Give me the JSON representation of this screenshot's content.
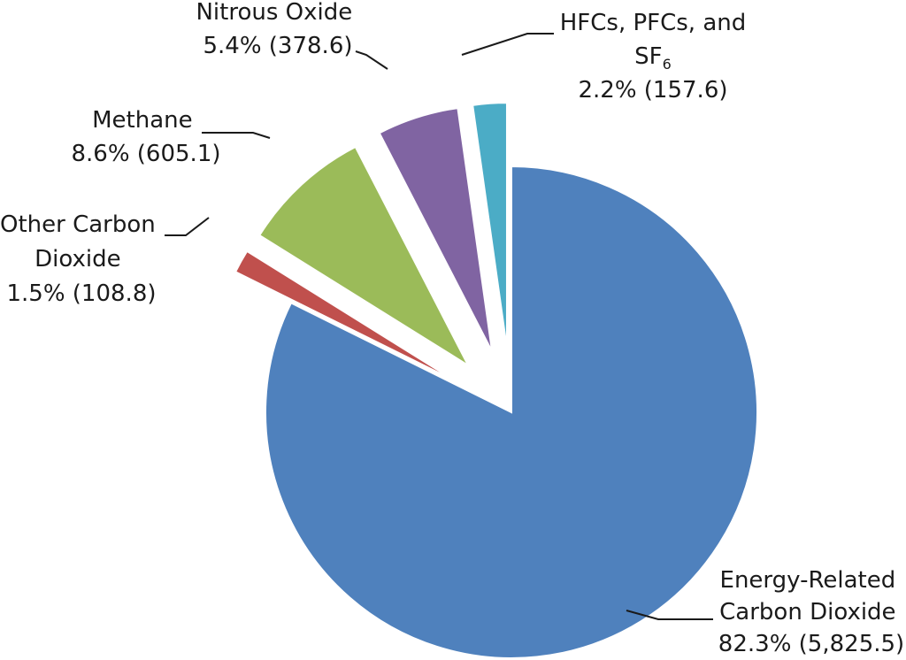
{
  "chart_data": {
    "type": "pie",
    "title": "",
    "exploded": true,
    "slices": [
      {
        "name": "Energy-Related Carbon Dioxide",
        "label_lines": [
          "Energy-Related",
          "Carbon Dioxide"
        ],
        "pct_label": "82.3% (5,825.5)",
        "percent": 82.3,
        "value": 5825.5,
        "color": "#4f81bd"
      },
      {
        "name": "Other Carbon Dioxide",
        "label_lines": [
          "Other Carbon",
          "Dioxide"
        ],
        "pct_label": "1.5% (108.8)",
        "percent": 1.5,
        "value": 108.8,
        "color": "#c0504d"
      },
      {
        "name": "Methane",
        "label_lines": [
          "Methane"
        ],
        "pct_label": "8.6% (605.1)",
        "percent": 8.6,
        "value": 605.1,
        "color": "#9bbb59"
      },
      {
        "name": "Nitrous Oxide",
        "label_lines": [
          "Nitrous Oxide"
        ],
        "pct_label": "5.4% (378.6)",
        "percent": 5.4,
        "value": 378.6,
        "color": "#8064a2"
      },
      {
        "name": "HFCs, PFCs, and SF6",
        "label_lines": [
          "HFCs, PFCs, and"
        ],
        "label_sf_base": "SF",
        "label_sf_sub": "6",
        "pct_label": "2.2% (157.6)",
        "percent": 2.2,
        "value": 157.6,
        "color": "#4bacc6"
      }
    ]
  }
}
